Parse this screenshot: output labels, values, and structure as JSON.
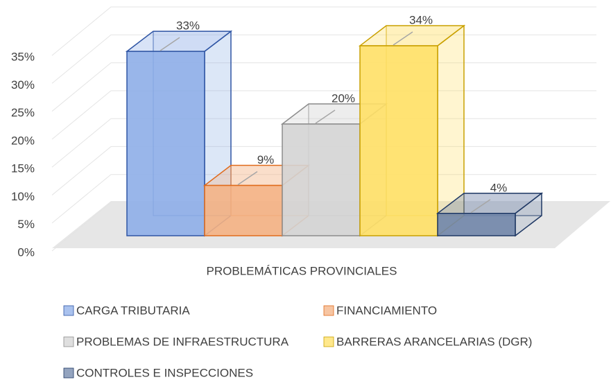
{
  "chart_data": {
    "type": "bar3d",
    "categories": [
      "PROBLEMÁTICAS PROVINCIALES"
    ],
    "series": [
      {
        "name": "CARGA TRIBUTARIA",
        "color": "#8eaee8",
        "edge": "#2f55a4",
        "values": [
          33
        ],
        "value_labels": [
          "33%"
        ]
      },
      {
        "name": "FINANCIAMIENTO",
        "color": "#f4b183",
        "edge": "#e06a1b",
        "values": [
          9
        ],
        "value_labels": [
          "9%"
        ]
      },
      {
        "name": "PROBLEMAS DE INFRAESTRUCTURA",
        "color": "#d4d4d4",
        "edge": "#8c8c8c",
        "values": [
          20
        ],
        "value_labels": [
          "20%"
        ]
      },
      {
        "name": "BARRERAS ARANCELARIAS (DGR)",
        "color": "#ffe066",
        "edge": "#c9a000",
        "values": [
          34
        ],
        "value_labels": [
          "34%"
        ]
      },
      {
        "name": "CONTROLES E INSPECCIONES",
        "color": "#7085a9",
        "edge": "#1f3864",
        "values": [
          4
        ],
        "value_labels": [
          "4%"
        ]
      }
    ],
    "ylim": [
      0,
      35
    ],
    "yticks": [
      {
        "value": 0,
        "label": "0%"
      },
      {
        "value": 5,
        "label": "5%"
      },
      {
        "value": 10,
        "label": "10%"
      },
      {
        "value": 15,
        "label": "15%"
      },
      {
        "value": 20,
        "label": "20%"
      },
      {
        "value": 25,
        "label": "25%"
      },
      {
        "value": 30,
        "label": "30%"
      },
      {
        "value": 35,
        "label": "35%"
      }
    ],
    "grid": true
  }
}
